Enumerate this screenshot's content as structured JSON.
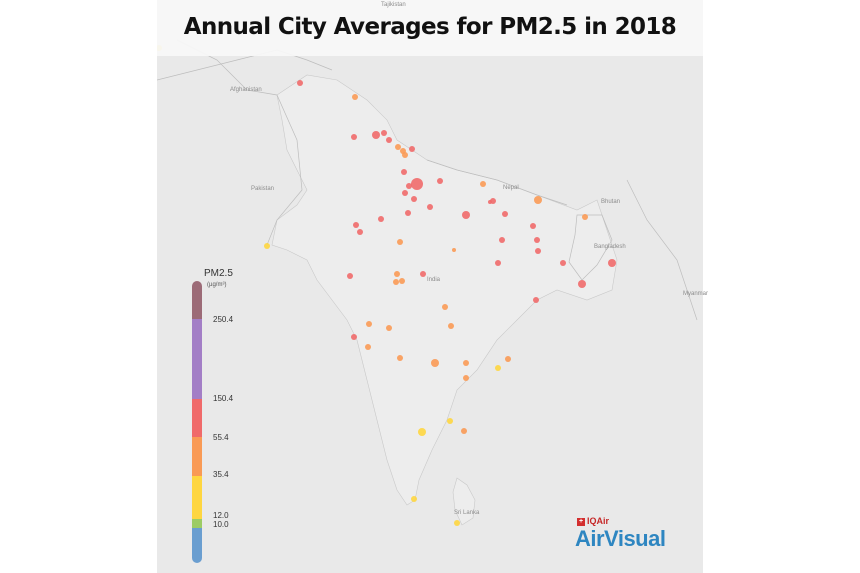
{
  "title": "Annual City Averages for PM2.5 in 2018",
  "countries": [
    {
      "name": "Tajikistan"
    },
    {
      "name": "Afghanistan"
    },
    {
      "name": "Pakistan"
    },
    {
      "name": "Nepal"
    },
    {
      "name": "Bhutan"
    },
    {
      "name": "Bangladesh"
    },
    {
      "name": "India"
    },
    {
      "name": "Myanmar"
    },
    {
      "name": "Sri Lanka"
    }
  ],
  "legend": {
    "title": "PM2.5",
    "unit": "(µg/m³)",
    "ticks": [
      "250.4",
      "150.4",
      "55.4",
      "35.4",
      "12.0",
      "10.0"
    ],
    "colors": {
      "hazardous": "#9c6b77",
      "very_unhealthy": "#a37ec6",
      "unhealthy": "#f06a6a",
      "unhealthy_sensitive": "#f99a55",
      "moderate": "#fed640",
      "good_upper": "#9ccc65",
      "good": "#6a9ed0"
    }
  },
  "logo": {
    "brand_small": "IQAir",
    "brand_main": "AirVisual",
    "swiss_flag": "swiss-cross-icon"
  }
}
